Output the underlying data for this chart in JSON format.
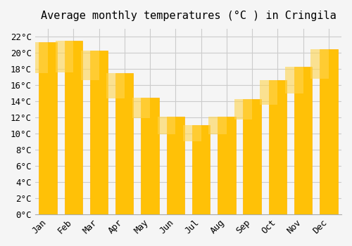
{
  "title": "Average monthly temperatures (°C ) in Cringila",
  "months": [
    "Jan",
    "Feb",
    "Mar",
    "Apr",
    "May",
    "Jun",
    "Jul",
    "Aug",
    "Sep",
    "Oct",
    "Nov",
    "Dec"
  ],
  "values": [
    21.3,
    21.5,
    20.3,
    17.5,
    14.5,
    12.1,
    11.1,
    12.1,
    14.3,
    16.6,
    18.3,
    20.5
  ],
  "bar_color_face": "#FFC107",
  "bar_color_edge": "#FFB300",
  "bar_gradient_top": "#FFD54F",
  "ylim": [
    0,
    23
  ],
  "yticks": [
    0,
    2,
    4,
    6,
    8,
    10,
    12,
    14,
    16,
    18,
    20,
    22
  ],
  "ytick_labels": [
    "0°C",
    "2°C",
    "4°C",
    "6°C",
    "8°C",
    "10°C",
    "12°C",
    "14°C",
    "16°C",
    "18°C",
    "20°C",
    "22°C"
  ],
  "background_color": "#f5f5f5",
  "grid_color": "#cccccc",
  "title_fontsize": 11,
  "tick_fontsize": 9,
  "font_family": "monospace"
}
